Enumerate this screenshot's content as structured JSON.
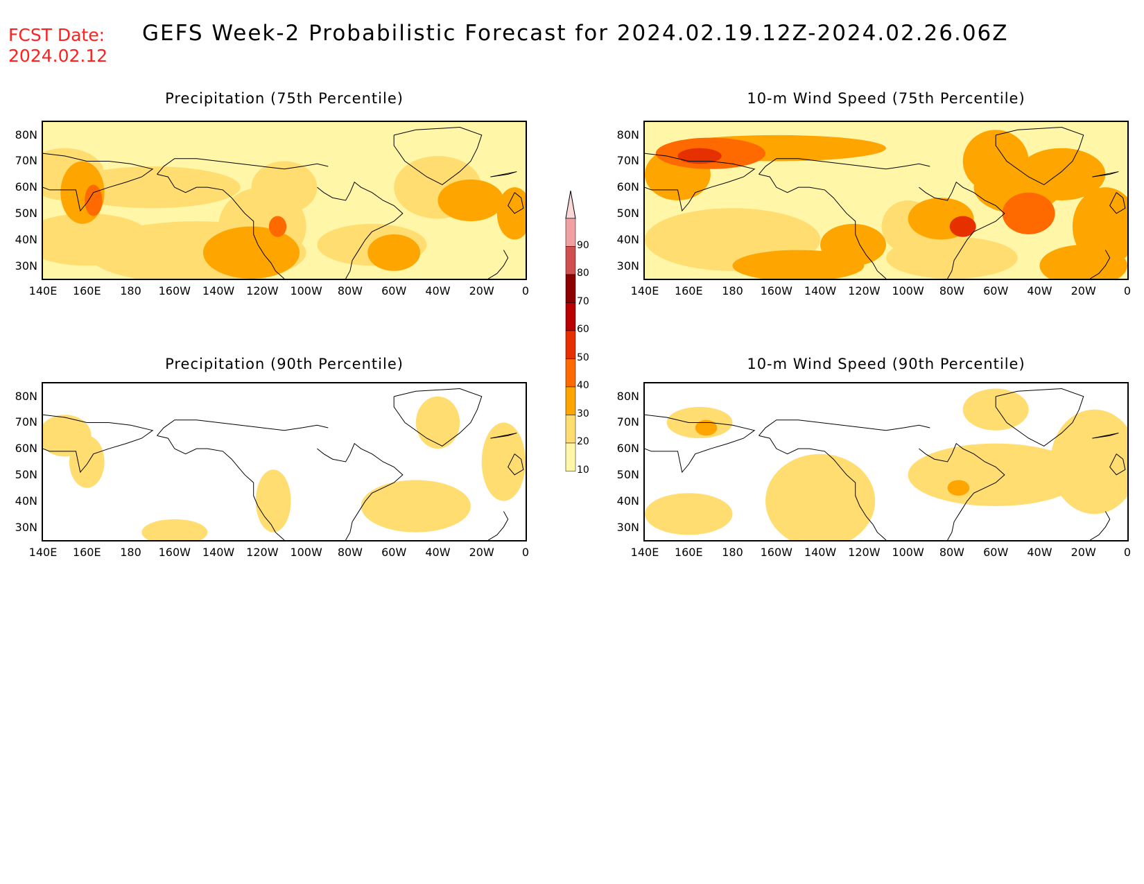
{
  "header": {
    "fcst_label": "FCST Date:",
    "fcst_date": "2024.02.12",
    "title": "GEFS Week-2 Probabilistic Forecast for 2024.02.19.12Z-2024.02.26.06Z"
  },
  "panels": [
    {
      "id": "precip75",
      "title": "Precipitation (75th Percentile)"
    },
    {
      "id": "wind75",
      "title": "10-m Wind Speed (75th Percentile)"
    },
    {
      "id": "precip90",
      "title": "Precipitation (90th Percentile)"
    },
    {
      "id": "wind90",
      "title": "10-m Wind Speed (90th Percentile)"
    }
  ],
  "axes": {
    "lat_labels": [
      "80N",
      "70N",
      "60N",
      "50N",
      "40N",
      "30N"
    ],
    "lon_labels": [
      "140E",
      "160E",
      "180",
      "160W",
      "140W",
      "120W",
      "100W",
      "80W",
      "60W",
      "40W",
      "20W",
      "0"
    ]
  },
  "colorbar": {
    "levels": [
      "10",
      "20",
      "30",
      "40",
      "50",
      "60",
      "70",
      "80",
      "90"
    ],
    "colors": [
      "#fff6a8",
      "#ffdd70",
      "#ffa500",
      "#ff6a00",
      "#e63000",
      "#b80000",
      "#8c0000",
      "#d05050",
      "#f0a0a0",
      "#fbd8d8"
    ]
  }
}
